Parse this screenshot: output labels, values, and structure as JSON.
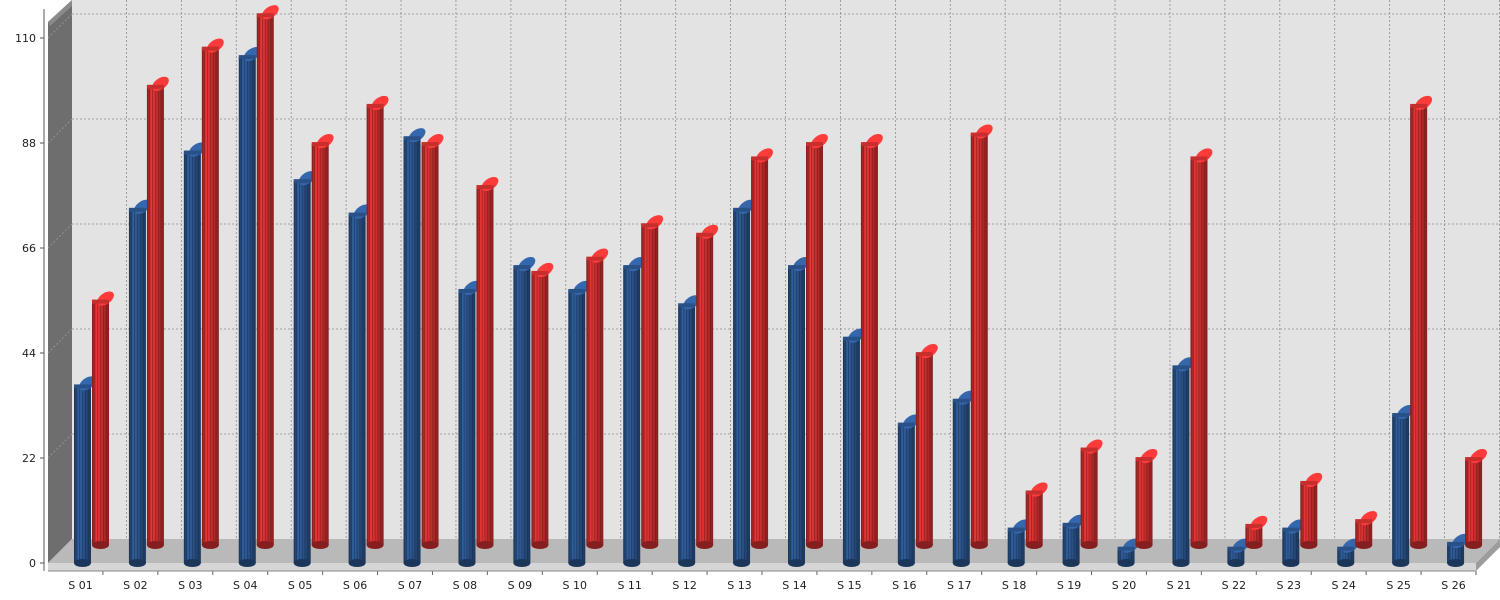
{
  "chart_data": {
    "type": "bar",
    "style": "3d-cylinder",
    "title": "",
    "xlabel": "",
    "ylabel": "",
    "ylim": [
      0,
      115
    ],
    "yticks": [
      0,
      22,
      44,
      66,
      88,
      110
    ],
    "grid": true,
    "legend": "none",
    "categories": [
      "S 01",
      "S 02",
      "S 03",
      "S 04",
      "S 05",
      "S 06",
      "S 07",
      "S 08",
      "S 09",
      "S 10",
      "S 11",
      "S 12",
      "S 13",
      "S 14",
      "S 15",
      "S 16",
      "S 17",
      "S 18",
      "S 19",
      "S 20",
      "S 21",
      "S 22",
      "S 23",
      "S 24",
      "S 25",
      "S 26"
    ],
    "series": [
      {
        "color": "#2e5a96",
        "values": [
          37,
          74,
          86,
          106,
          80,
          73,
          89,
          57,
          62,
          57,
          62,
          54,
          74,
          62,
          47,
          29,
          34,
          7,
          8,
          3,
          41,
          3,
          7,
          3,
          31,
          4
        ]
      },
      {
        "color": "#dd3333",
        "values": [
          51,
          96,
          104,
          111,
          84,
          92,
          84,
          75,
          57,
          60,
          67,
          65,
          81,
          84,
          84,
          40,
          86,
          11,
          20,
          18,
          81,
          4,
          13,
          5,
          92,
          18
        ]
      }
    ]
  }
}
